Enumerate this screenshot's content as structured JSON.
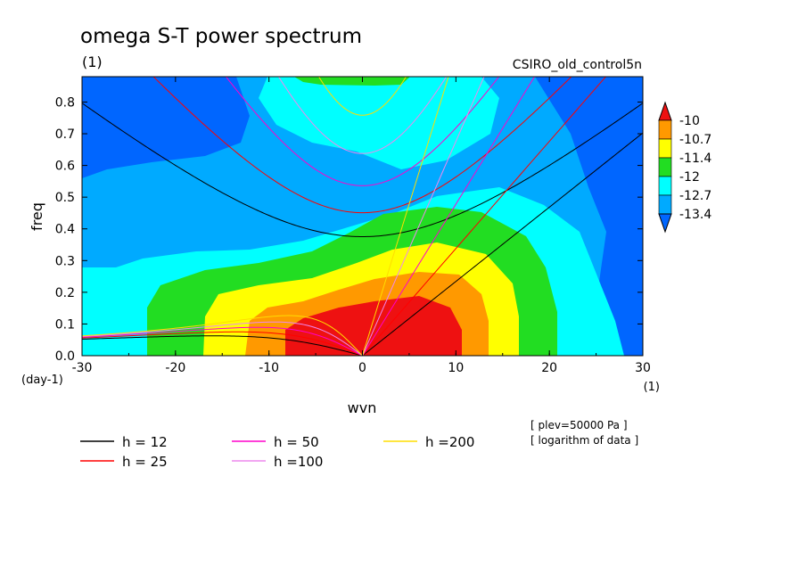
{
  "chart_data": {
    "type": "heatmap",
    "title": "omega S-T power spectrum",
    "title_units": "(1)",
    "model_label": "CSIRO_old_control5n",
    "xlabel": "wvn",
    "xunits": "(1)",
    "ylabel": "freq",
    "yunits": "(day-1)",
    "xlim": [
      -30,
      30
    ],
    "ylim": [
      0.0,
      0.88
    ],
    "x_ticks": [
      "-30",
      "-20",
      "-10",
      "0",
      "10",
      "20",
      "30"
    ],
    "y_ticks": [
      "0.0",
      "0.1",
      "0.2",
      "0.3",
      "0.4",
      "0.5",
      "0.6",
      "0.7",
      "0.8"
    ],
    "notes": [
      "[ plev=50000 Pa ]",
      "[ logarithm of data ]"
    ],
    "colorbar": {
      "labels": [
        "-10",
        "-10.7",
        "-11.4",
        "-12",
        "-12.7",
        "-13.4"
      ],
      "levels": [
        -10,
        -10.7,
        -11.4,
        -12,
        -12.7,
        -13.4
      ],
      "colors": [
        "#ee1111",
        "#ff9900",
        "#ffff00",
        "#22dd22",
        "#00ffff",
        "#00aaff",
        "#0066ff"
      ]
    },
    "dispersion_curves": [
      {
        "name": "h = 12",
        "h": 12,
        "color": "#000000"
      },
      {
        "name": "h = 25",
        "h": 25,
        "color": "#ff0000"
      },
      {
        "name": "h = 50",
        "h": 50,
        "color": "#ff00cc"
      },
      {
        "name": "h =100",
        "h": 100,
        "color": "#ee88ee"
      },
      {
        "name": "h =200",
        "h": 200,
        "color": "#ffdd00"
      }
    ]
  }
}
